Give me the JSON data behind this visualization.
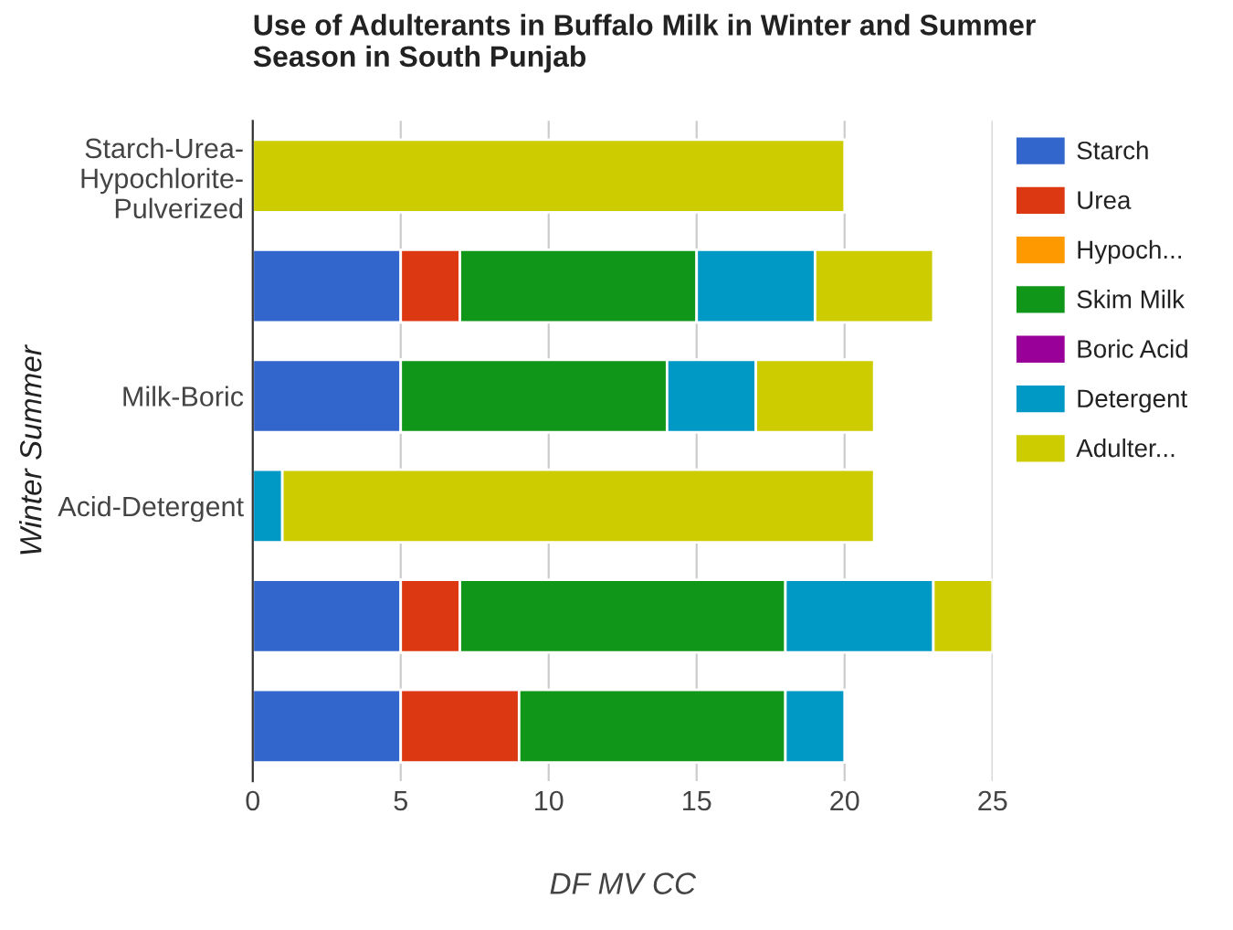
{
  "chart_data": {
    "type": "bar",
    "title": "Use of Adulterants in Buffalo Milk in Winter and Summer\nSeason in South Punjab",
    "categories": [
      "Starch-Urea-\nHypochlorite-\nPulverized",
      null,
      "Milk-Boric",
      "Acid-Detergent",
      null,
      null
    ],
    "series": [
      {
        "name": "Starch",
        "color": "#3366cc",
        "values": [
          null,
          5,
          5,
          null,
          5,
          5
        ]
      },
      {
        "name": "Urea",
        "color": "#dc3912",
        "values": [
          null,
          2,
          null,
          null,
          2,
          4
        ]
      },
      {
        "name": "Hypoch...",
        "color": "#ff9900",
        "values": [
          null,
          null,
          null,
          null,
          null,
          null
        ]
      },
      {
        "name": "Skim Milk",
        "color": "#109618",
        "values": [
          null,
          8,
          9,
          null,
          11,
          9
        ]
      },
      {
        "name": "Boric Acid",
        "color": "#990099",
        "values": [
          null,
          null,
          null,
          null,
          null,
          null
        ]
      },
      {
        "name": "Detergent",
        "color": "#0099c6",
        "values": [
          null,
          4,
          3,
          1,
          5,
          2
        ]
      },
      {
        "name": "Adulter...",
        "color": "#cccc00",
        "values": [
          20,
          4,
          4,
          20,
          2,
          null
        ]
      }
    ],
    "stacked": true,
    "orientation": "horizontal",
    "xlim": [
      0,
      25
    ],
    "xticks": [
      0,
      5,
      10,
      15,
      20,
      25
    ],
    "xlabel": "DF MV CC",
    "ylabel": "Winter Summer",
    "grid": "x",
    "legend": "top right"
  }
}
